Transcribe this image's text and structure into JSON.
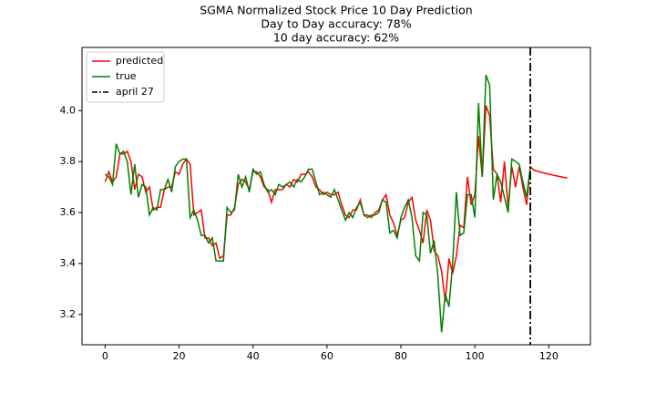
{
  "chart_data": {
    "type": "line",
    "title": "SGMA Normalized Stock Price 10 Day Prediction",
    "subtitle": [
      "Day to Day accuracy: 78%",
      "10 day accuracy: 62%"
    ],
    "x": [
      0,
      1,
      2,
      3,
      4,
      5,
      6,
      7,
      8,
      9,
      10,
      11,
      12,
      13,
      14,
      15,
      16,
      17,
      18,
      19,
      20,
      21,
      22,
      23,
      24,
      25,
      26,
      27,
      28,
      29,
      30,
      31,
      32,
      33,
      34,
      35,
      36,
      37,
      38,
      39,
      40,
      41,
      42,
      43,
      44,
      45,
      46,
      47,
      48,
      49,
      50,
      51,
      52,
      53,
      54,
      55,
      56,
      57,
      58,
      59,
      60,
      61,
      62,
      63,
      64,
      65,
      66,
      67,
      68,
      69,
      70,
      71,
      72,
      73,
      74,
      75,
      76,
      77,
      78,
      79,
      80,
      81,
      82,
      83,
      84,
      85,
      86,
      87,
      88,
      89,
      90,
      91,
      92,
      93,
      94,
      95,
      96,
      97,
      98,
      99,
      100,
      101,
      102,
      103,
      104,
      105,
      106,
      107,
      108,
      109,
      110,
      111,
      112,
      113,
      114,
      115,
      116,
      117,
      118,
      119,
      120,
      121,
      122,
      123,
      124,
      125
    ],
    "series": [
      {
        "name": "predicted",
        "color": "#ff0000",
        "values": [
          3.72,
          3.76,
          3.72,
          3.74,
          3.83,
          3.83,
          3.84,
          3.8,
          3.69,
          3.75,
          3.74,
          3.68,
          3.7,
          3.61,
          3.62,
          3.62,
          3.69,
          3.7,
          3.7,
          3.76,
          3.75,
          3.79,
          3.81,
          3.79,
          3.59,
          3.6,
          3.61,
          3.5,
          3.5,
          3.47,
          3.48,
          3.42,
          3.43,
          3.59,
          3.59,
          3.62,
          3.71,
          3.73,
          3.72,
          3.69,
          3.76,
          3.76,
          3.74,
          3.7,
          3.69,
          3.64,
          3.69,
          3.69,
          3.69,
          3.71,
          3.7,
          3.73,
          3.72,
          3.75,
          3.75,
          3.76,
          3.74,
          3.7,
          3.69,
          3.67,
          3.68,
          3.67,
          3.67,
          3.68,
          3.63,
          3.59,
          3.58,
          3.61,
          3.61,
          3.65,
          3.59,
          3.59,
          3.58,
          3.6,
          3.61,
          3.65,
          3.67,
          3.59,
          3.56,
          3.51,
          3.57,
          3.58,
          3.64,
          3.66,
          3.57,
          3.53,
          3.48,
          3.61,
          3.57,
          3.45,
          3.43,
          3.37,
          3.25,
          3.42,
          3.36,
          3.43,
          3.55,
          3.54,
          3.74,
          3.63,
          3.67,
          3.9,
          3.74,
          4.02,
          3.98,
          3.77,
          3.75,
          3.64,
          3.8,
          3.62,
          3.78,
          3.7,
          3.78,
          3.7,
          3.63,
          3.78,
          3.766,
          3.762,
          3.758,
          3.754,
          3.751,
          3.747,
          3.744,
          3.741,
          3.738,
          3.735
        ]
      },
      {
        "name": "true",
        "color": "#008000",
        "values": [
          3.75,
          3.74,
          3.71,
          3.87,
          3.83,
          3.84,
          3.8,
          3.67,
          3.79,
          3.66,
          3.71,
          3.7,
          3.59,
          3.62,
          3.61,
          3.69,
          3.69,
          3.73,
          3.68,
          3.78,
          3.8,
          3.81,
          3.81,
          3.58,
          3.61,
          3.57,
          3.51,
          3.51,
          3.48,
          3.5,
          3.41,
          3.41,
          3.41,
          3.62,
          3.6,
          3.61,
          3.75,
          3.7,
          3.74,
          3.68,
          3.77,
          3.75,
          3.76,
          3.71,
          3.68,
          3.69,
          3.67,
          3.71,
          3.7,
          3.71,
          3.72,
          3.7,
          3.73,
          3.72,
          3.74,
          3.77,
          3.77,
          3.72,
          3.67,
          3.68,
          3.67,
          3.66,
          3.69,
          3.65,
          3.61,
          3.57,
          3.6,
          3.58,
          3.62,
          3.64,
          3.59,
          3.58,
          3.59,
          3.59,
          3.6,
          3.65,
          3.64,
          3.52,
          3.53,
          3.5,
          3.58,
          3.62,
          3.65,
          3.58,
          3.43,
          3.41,
          3.6,
          3.59,
          3.44,
          3.49,
          3.35,
          3.13,
          3.28,
          3.23,
          3.4,
          3.68,
          3.51,
          3.52,
          3.67,
          3.67,
          3.58,
          4.03,
          3.74,
          4.14,
          4.1,
          3.65,
          3.75,
          3.72,
          3.66,
          3.6,
          3.81,
          3.8,
          3.79,
          3.72,
          3.66,
          3.78,
          null,
          null,
          null,
          null,
          null,
          null,
          null,
          null,
          null,
          null
        ]
      }
    ],
    "vline": {
      "x": 115,
      "name": "april 27",
      "color": "#000000",
      "style": "dashdot"
    },
    "xlim": [
      -6.25,
      131.25
    ],
    "ylim": [
      3.081,
      4.248
    ],
    "xticks": [
      0,
      20,
      40,
      60,
      80,
      100,
      120
    ],
    "yticks": [
      3.2,
      3.4,
      3.6,
      3.8,
      {
        "value": 4,
        "label": "4.0"
      }
    ],
    "grid": false,
    "legend": "upper left"
  }
}
